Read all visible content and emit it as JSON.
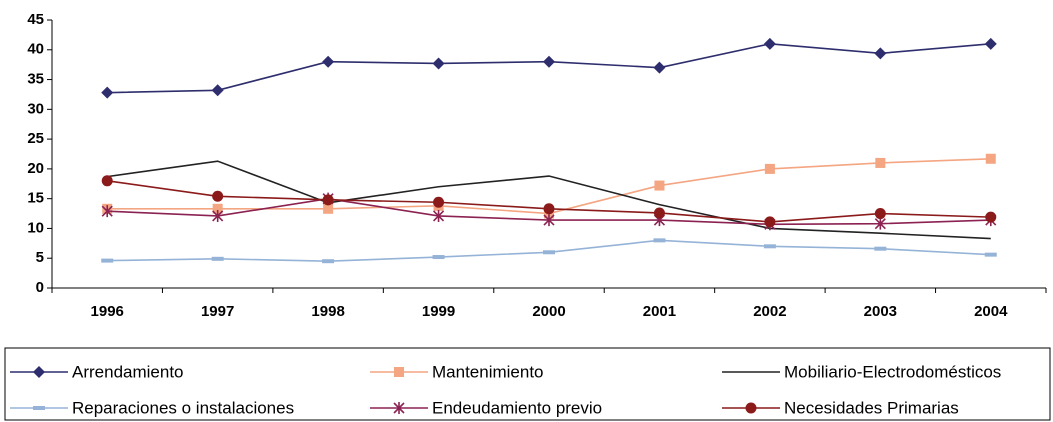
{
  "chart_data": {
    "type": "line",
    "categories": [
      "1996",
      "1997",
      "1998",
      "1999",
      "2000",
      "2001",
      "2002",
      "2003",
      "2004"
    ],
    "ylim": [
      0,
      45
    ],
    "yticks": [
      0,
      5,
      10,
      15,
      20,
      25,
      30,
      35,
      40,
      45
    ],
    "series": [
      {
        "name": "Arrendamiento",
        "color": "#2e2e6e",
        "marker": "diamond",
        "values": [
          32.8,
          33.2,
          38,
          37.7,
          38,
          37,
          41,
          39.4,
          41
        ]
      },
      {
        "name": "Mantenimiento",
        "color": "#f4a582",
        "marker": "square",
        "values": [
          13.3,
          13.3,
          13.3,
          13.8,
          12.5,
          17.2,
          20,
          21,
          21.7
        ]
      },
      {
        "name": "Mobiliario-Electrodomésticos",
        "color": "#222222",
        "marker": "none",
        "values": [
          18.7,
          21.3,
          14.3,
          17,
          18.8,
          14,
          10,
          9.2,
          8.3
        ]
      },
      {
        "name": "Reparaciones o instalaciones",
        "color": "#95b3d7",
        "marker": "dash",
        "values": [
          4.6,
          4.9,
          4.5,
          5.2,
          6,
          8,
          7,
          6.6,
          5.6
        ]
      },
      {
        "name": "Endeudamiento previo",
        "color": "#8b2252",
        "marker": "star",
        "values": [
          12.9,
          12.1,
          15,
          12.1,
          11.4,
          11.4,
          10.7,
          10.8,
          11.4
        ]
      },
      {
        "name": "Necesidades Primarias",
        "color": "#8b1a1a",
        "marker": "circle",
        "values": [
          18,
          15.4,
          14.8,
          14.4,
          13.3,
          12.6,
          11.1,
          12.5,
          11.9
        ]
      }
    ]
  }
}
